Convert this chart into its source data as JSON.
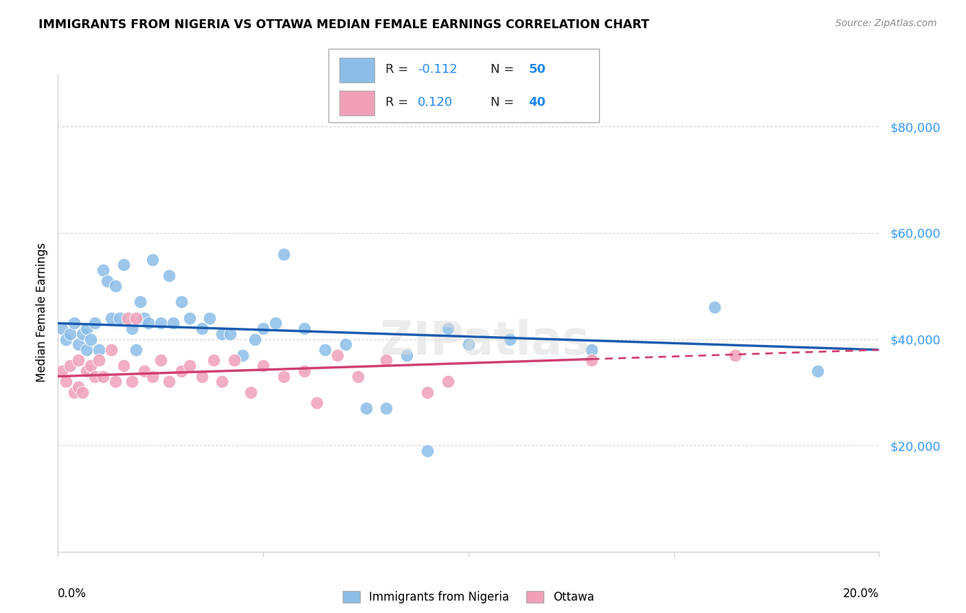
{
  "title": "IMMIGRANTS FROM NIGERIA VS OTTAWA MEDIAN FEMALE EARNINGS CORRELATION CHART",
  "source": "Source: ZipAtlas.com",
  "ylabel": "Median Female Earnings",
  "legend_label1": "Immigrants from Nigeria",
  "legend_label2": "Ottawa",
  "r1": "-0.112",
  "n1": "50",
  "r2": "0.120",
  "n2": "40",
  "color_blue": "#8BBDE8",
  "color_pink": "#F0A0B8",
  "color_blue_line": "#1A5CB0",
  "color_pink_line": "#D04070",
  "ytick_labels": [
    "$20,000",
    "$40,000",
    "$60,000",
    "$80,000"
  ],
  "ytick_values": [
    20000,
    40000,
    60000,
    80000
  ],
  "ylim": [
    0,
    90000
  ],
  "xlim": [
    0.0,
    0.2
  ],
  "blue_x": [
    0.001,
    0.002,
    0.003,
    0.004,
    0.005,
    0.006,
    0.007,
    0.007,
    0.008,
    0.009,
    0.01,
    0.011,
    0.012,
    0.013,
    0.014,
    0.015,
    0.016,
    0.018,
    0.019,
    0.02,
    0.021,
    0.022,
    0.023,
    0.025,
    0.027,
    0.028,
    0.03,
    0.032,
    0.035,
    0.037,
    0.04,
    0.042,
    0.045,
    0.048,
    0.05,
    0.053,
    0.055,
    0.06,
    0.065,
    0.07,
    0.075,
    0.08,
    0.085,
    0.09,
    0.095,
    0.1,
    0.11,
    0.13,
    0.16,
    0.185
  ],
  "blue_y": [
    42000,
    40000,
    41000,
    43000,
    39000,
    41000,
    42000,
    38000,
    40000,
    43000,
    38000,
    53000,
    51000,
    44000,
    50000,
    44000,
    54000,
    42000,
    38000,
    47000,
    44000,
    43000,
    55000,
    43000,
    52000,
    43000,
    47000,
    44000,
    42000,
    44000,
    41000,
    41000,
    37000,
    40000,
    42000,
    43000,
    56000,
    42000,
    38000,
    39000,
    27000,
    27000,
    37000,
    19000,
    42000,
    39000,
    40000,
    38000,
    46000,
    34000
  ],
  "pink_x": [
    0.001,
    0.002,
    0.003,
    0.004,
    0.005,
    0.005,
    0.006,
    0.007,
    0.008,
    0.009,
    0.01,
    0.011,
    0.013,
    0.014,
    0.016,
    0.017,
    0.018,
    0.019,
    0.021,
    0.023,
    0.025,
    0.027,
    0.03,
    0.032,
    0.035,
    0.038,
    0.04,
    0.043,
    0.047,
    0.05,
    0.055,
    0.06,
    0.063,
    0.068,
    0.073,
    0.08,
    0.09,
    0.095,
    0.13,
    0.165
  ],
  "pink_y": [
    34000,
    32000,
    35000,
    30000,
    31000,
    36000,
    30000,
    34000,
    35000,
    33000,
    36000,
    33000,
    38000,
    32000,
    35000,
    44000,
    32000,
    44000,
    34000,
    33000,
    36000,
    32000,
    34000,
    35000,
    33000,
    36000,
    32000,
    36000,
    30000,
    35000,
    33000,
    34000,
    28000,
    37000,
    33000,
    36000,
    30000,
    32000,
    36000,
    37000
  ]
}
